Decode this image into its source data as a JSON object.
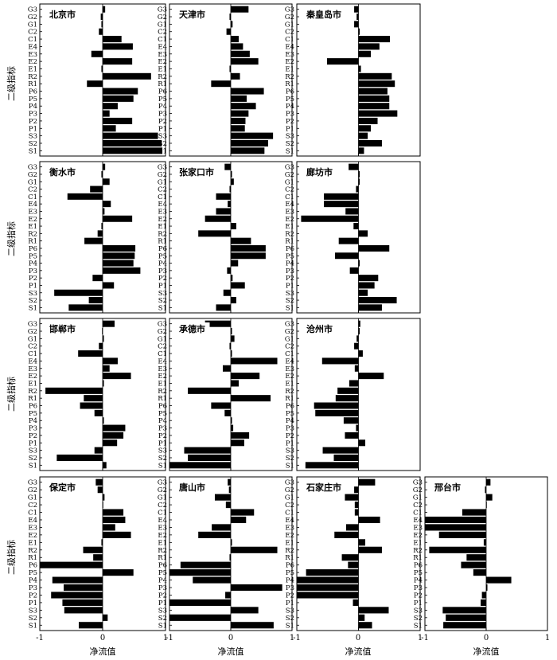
{
  "figure": {
    "ylabel": "二级指标",
    "xlabel": "净流值",
    "xtick_labels": [
      "-1",
      "0",
      "1"
    ]
  },
  "chart_data": {
    "type": "bar",
    "orientation": "horizontal",
    "categories": [
      "G3",
      "G2",
      "G1",
      "C2",
      "C1",
      "E4",
      "E3",
      "E2",
      "E1",
      "R2",
      "R1",
      "P6",
      "P5",
      "P4",
      "P3",
      "P2",
      "P1",
      "S3",
      "S2",
      "S1"
    ],
    "xlim": [
      -1,
      1
    ],
    "xticks": [
      -1,
      0,
      1
    ],
    "xlabel": "净流值",
    "ylabel": "二级指标",
    "grid": false,
    "panels": [
      {
        "name": "北京市",
        "values": [
          0.04,
          -0.03,
          -0.02,
          -0.06,
          0.3,
          0.48,
          -0.18,
          0.47,
          -0.02,
          0.77,
          -0.25,
          0.56,
          0.49,
          0.24,
          0.11,
          0.47,
          0.21,
          0.88,
          0.94,
          0.95
        ]
      },
      {
        "name": "天津市",
        "values": [
          0.29,
          -0.02,
          0.03,
          -0.07,
          0.13,
          0.2,
          0.31,
          0.45,
          -0.02,
          0.15,
          -0.32,
          0.54,
          0.26,
          0.41,
          0.29,
          0.24,
          0.23,
          0.69,
          0.61,
          0.55
        ]
      },
      {
        "name": "秦皇岛市",
        "values": [
          -0.07,
          -0.03,
          -0.07,
          0.02,
          0.51,
          0.34,
          0.2,
          -0.51,
          0.04,
          0.54,
          0.59,
          0.47,
          0.5,
          0.5,
          0.63,
          0.31,
          0.2,
          0.15,
          0.38,
          0.09
        ]
      },
      {
        "name": "衡水市",
        "values": [
          0.04,
          -0.02,
          0.11,
          -0.2,
          -0.56,
          0.13,
          0.03,
          0.47,
          -0.02,
          -0.08,
          -0.29,
          0.52,
          0.51,
          0.49,
          0.6,
          -0.16,
          0.18,
          -0.77,
          -0.22,
          -0.54
        ]
      },
      {
        "name": "张家口市",
        "values": [
          -0.1,
          0.02,
          0.05,
          -0.02,
          -0.24,
          -0.05,
          -0.24,
          -0.42,
          0.09,
          -0.53,
          0.33,
          0.57,
          0.57,
          0.12,
          -0.06,
          0.03,
          0.23,
          -0.12,
          0.09,
          -0.24
        ]
      },
      {
        "name": "廊坊市",
        "values": [
          -0.16,
          0.02,
          0.02,
          -0.04,
          -0.56,
          -0.56,
          -0.21,
          -0.93,
          -0.08,
          0.15,
          -0.32,
          0.5,
          -0.38,
          0.02,
          -0.14,
          0.32,
          0.26,
          0.15,
          0.62,
          0.38
        ]
      },
      {
        "name": "邯郸市",
        "values": [
          0.19,
          -0.01,
          0.02,
          -0.06,
          -0.39,
          0.24,
          0.11,
          0.45,
          0.02,
          -0.91,
          -0.3,
          -0.36,
          -0.13,
          0.02,
          0.36,
          0.33,
          0.23,
          -0.13,
          -0.73,
          0.06
        ]
      },
      {
        "name": "承德市",
        "values": [
          -0.42,
          0.02,
          0.06,
          -0.02,
          0.02,
          0.76,
          -0.13,
          0.47,
          0.13,
          -0.7,
          0.65,
          -0.32,
          -0.1,
          0.02,
          0.04,
          0.3,
          0.22,
          -0.76,
          -0.7,
          -1.0
        ]
      },
      {
        "name": "沧州市",
        "values": [
          0.03,
          0.02,
          -0.03,
          -0.07,
          0.07,
          -0.59,
          -0.06,
          0.41,
          -0.15,
          -0.34,
          -0.37,
          -0.72,
          -0.7,
          -0.24,
          -0.04,
          -0.22,
          0.11,
          -0.58,
          -0.4,
          -0.86
        ]
      },
      {
        "name": "保定市",
        "values": [
          -0.11,
          -0.08,
          0.03,
          0.01,
          0.33,
          0.36,
          0.2,
          0.45,
          -0.02,
          -0.31,
          -0.15,
          -1.0,
          0.49,
          -0.8,
          -0.62,
          -0.82,
          -0.64,
          -0.61,
          0.08,
          -0.38
        ]
      },
      {
        "name": "唐山市",
        "values": [
          -0.05,
          -0.03,
          -0.26,
          -0.08,
          0.38,
          0.25,
          -0.31,
          -0.53,
          0.02,
          0.76,
          -0.02,
          -0.82,
          -1.0,
          -0.62,
          0.84,
          -0.09,
          -1.0,
          0.45,
          -1.0,
          0.7
        ]
      },
      {
        "name": "石家庄市",
        "values": [
          0.27,
          -0.07,
          -0.22,
          -0.06,
          -0.06,
          0.35,
          -0.2,
          -0.39,
          0.11,
          0.38,
          -0.27,
          -0.17,
          -0.85,
          -1.0,
          -1.0,
          -1.0,
          -0.09,
          0.49,
          0.1,
          0.22
        ]
      },
      {
        "name": "邢台市",
        "values": [
          0.07,
          -0.02,
          0.1,
          0.01,
          -0.39,
          -1.0,
          -1.0,
          -0.77,
          -0.04,
          -0.93,
          -0.32,
          -0.41,
          -0.21,
          0.41,
          0.02,
          -0.07,
          -0.09,
          -0.71,
          -0.66,
          -0.7
        ]
      }
    ]
  }
}
